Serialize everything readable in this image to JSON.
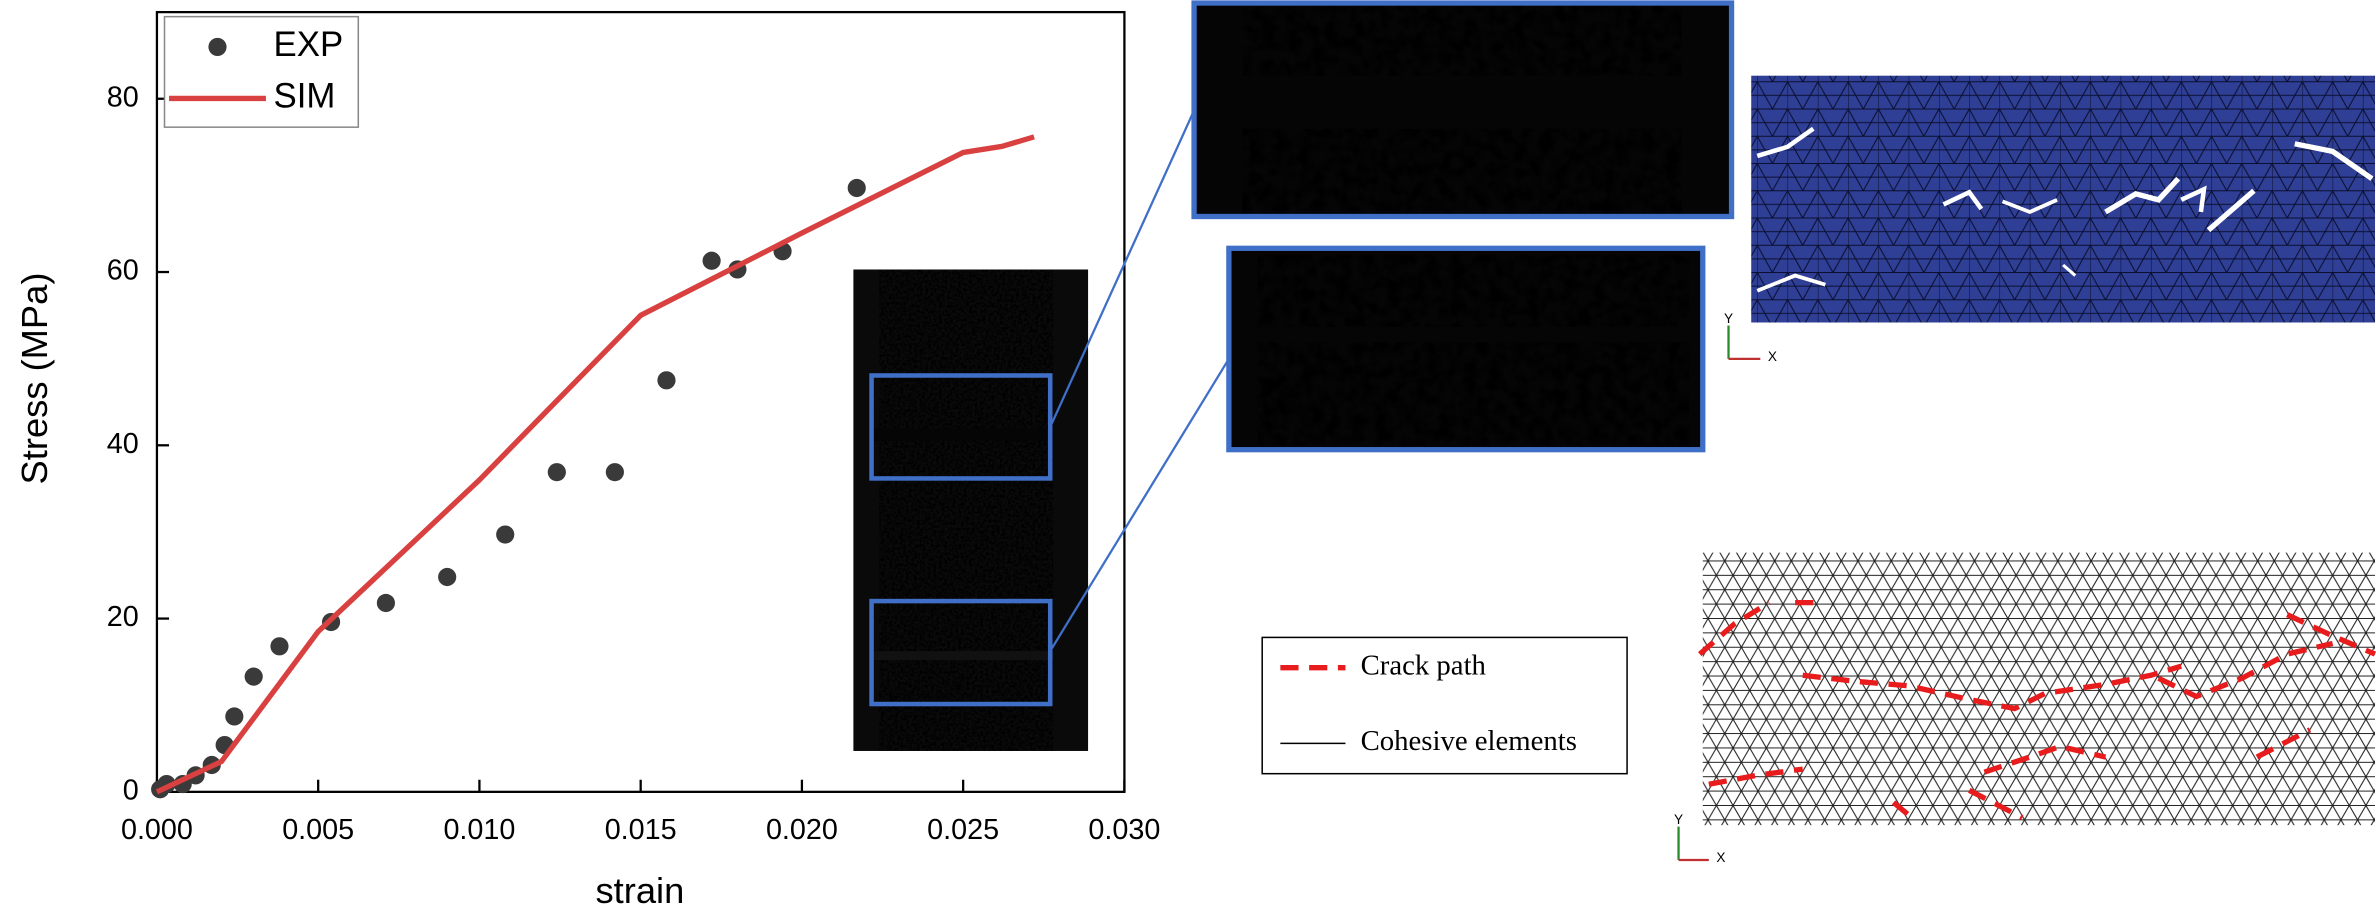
{
  "chart_data": {
    "type": "scatter",
    "x_label": "strain",
    "y_label": "Stress (MPa)",
    "xlim": [
      0,
      0.03
    ],
    "ylim": [
      0,
      90
    ],
    "xticks": [
      {
        "value": 0,
        "label": "0.000"
      },
      {
        "value": 0.005,
        "label": "0.005"
      },
      {
        "value": 0.01,
        "label": "0.010"
      },
      {
        "value": 0.015,
        "label": "0.015"
      },
      {
        "value": 0.02,
        "label": "0.020"
      },
      {
        "value": 0.025,
        "label": "0.025"
      },
      {
        "value": 0.03,
        "label": "0.030"
      }
    ],
    "yticks": [
      0,
      20,
      40,
      60,
      80
    ],
    "legend": "upper left",
    "series": [
      {
        "name": "EXP",
        "type": "scatter",
        "color": "#3a3a3a",
        "x": [
          0.0001,
          0.0003,
          0.0008,
          0.0012,
          0.0017,
          0.0021,
          0.0024,
          0.003,
          0.0038,
          0.0054,
          0.0071,
          0.009,
          0.0108,
          0.0124,
          0.0142,
          0.0158,
          0.0172,
          0.018,
          0.0194,
          0.0217
        ],
        "values": [
          0.3,
          0.9,
          0.9,
          1.9,
          3.1,
          5.4,
          8.7,
          13.3,
          16.8,
          19.6,
          21.8,
          24.8,
          29.7,
          36.9,
          36.9,
          47.5,
          61.3,
          60.3,
          62.4,
          69.7
        ]
      },
      {
        "name": "SIM",
        "type": "line",
        "color": "#d94040",
        "x": [
          0,
          0.002,
          0.005,
          0.01,
          0.0121,
          0.015,
          0.02,
          0.025,
          0.0262,
          0.0272
        ],
        "values": [
          0,
          3.5,
          18.5,
          36,
          44,
          55,
          64.5,
          73.8,
          74.5,
          75.6
        ]
      }
    ]
  },
  "mesh_legend": {
    "crack_path": "Crack path",
    "cohesive_elements": "Cohesive elements"
  },
  "triad_top": {
    "y": "Y",
    "x": "X"
  },
  "triad_bottom": {
    "y": "Y",
    "x": "X"
  }
}
